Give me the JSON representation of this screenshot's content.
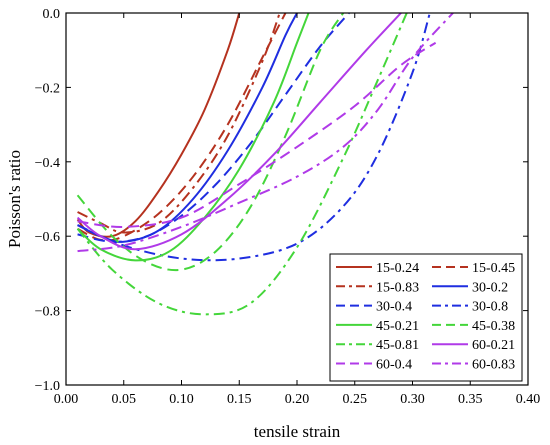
{
  "chart_data": {
    "type": "line",
    "title": "",
    "xlabel": "tensile strain",
    "ylabel": "Poisson's ratio",
    "xlim": [
      0.0,
      0.4
    ],
    "ylim": [
      -1.0,
      0.0
    ],
    "x_ticks": [
      0.0,
      0.05,
      0.1,
      0.15,
      0.2,
      0.25,
      0.3,
      0.35,
      0.4
    ],
    "x_tick_labels": [
      "0.00",
      "0.05",
      "0.10",
      "0.15",
      "0.20",
      "0.25",
      "0.30",
      "0.35",
      "0.40"
    ],
    "y_ticks": [
      0.0,
      -0.2,
      -0.4,
      -0.6,
      -0.8,
      -1.0
    ],
    "y_tick_labels": [
      "0.0",
      "−0.2",
      "−0.4",
      "−0.6",
      "−0.8",
      "−1.0"
    ],
    "grid": false,
    "legend_position": "bottom-right",
    "series": [
      {
        "name": "15-0.24",
        "color": "#b5321f",
        "dash": "solid",
        "x": [
          0.01,
          0.02,
          0.04,
          0.06,
          0.08,
          0.1,
          0.12,
          0.14,
          0.15
        ],
        "y": [
          -0.555,
          -0.59,
          -0.6,
          -0.56,
          -0.48,
          -0.38,
          -0.26,
          -0.1,
          0.0
        ]
      },
      {
        "name": "15-0.45",
        "color": "#b5321f",
        "dash": "dash",
        "x": [
          0.01,
          0.03,
          0.05,
          0.08,
          0.11,
          0.14,
          0.17,
          0.19
        ],
        "y": [
          -0.58,
          -0.61,
          -0.6,
          -0.54,
          -0.44,
          -0.3,
          -0.12,
          0.0
        ]
      },
      {
        "name": "15-0.83",
        "color": "#b5321f",
        "dash": "dashdot",
        "x": [
          0.01,
          0.03,
          0.05,
          0.08,
          0.11,
          0.14,
          0.17,
          0.185
        ],
        "y": [
          -0.535,
          -0.565,
          -0.59,
          -0.565,
          -0.47,
          -0.33,
          -0.13,
          0.0
        ]
      },
      {
        "name": "30-0.2",
        "color": "#1f2ee0",
        "dash": "solid",
        "x": [
          0.01,
          0.03,
          0.05,
          0.08,
          0.11,
          0.14,
          0.17,
          0.19,
          0.2
        ],
        "y": [
          -0.57,
          -0.6,
          -0.615,
          -0.585,
          -0.5,
          -0.37,
          -0.2,
          -0.06,
          0.0
        ]
      },
      {
        "name": "30-0.4",
        "color": "#1f2ee0",
        "dash": "dash",
        "x": [
          0.01,
          0.04,
          0.07,
          0.1,
          0.13,
          0.16,
          0.19,
          0.22,
          0.245
        ],
        "y": [
          -0.595,
          -0.615,
          -0.6,
          -0.545,
          -0.46,
          -0.35,
          -0.22,
          -0.09,
          0.0
        ]
      },
      {
        "name": "30-0.8",
        "color": "#1f2ee0",
        "dash": "dashdot",
        "x": [
          0.01,
          0.05,
          0.1,
          0.15,
          0.2,
          0.24,
          0.27,
          0.3,
          0.315
        ],
        "y": [
          -0.57,
          -0.625,
          -0.66,
          -0.66,
          -0.62,
          -0.52,
          -0.38,
          -0.16,
          0.0
        ]
      },
      {
        "name": "45-0.21",
        "color": "#44d63a",
        "dash": "solid",
        "x": [
          0.01,
          0.03,
          0.06,
          0.09,
          0.12,
          0.15,
          0.18,
          0.2,
          0.21
        ],
        "y": [
          -0.58,
          -0.635,
          -0.665,
          -0.64,
          -0.55,
          -0.42,
          -0.24,
          -0.08,
          0.0
        ]
      },
      {
        "name": "45-0.38",
        "color": "#44d63a",
        "dash": "dash",
        "x": [
          0.01,
          0.04,
          0.07,
          0.1,
          0.13,
          0.16,
          0.19,
          0.22,
          0.24
        ],
        "y": [
          -0.49,
          -0.6,
          -0.67,
          -0.69,
          -0.64,
          -0.52,
          -0.33,
          -0.1,
          0.0
        ]
      },
      {
        "name": "45-0.81",
        "color": "#44d63a",
        "dash": "dashdot",
        "x": [
          0.01,
          0.04,
          0.08,
          0.12,
          0.16,
          0.2,
          0.24,
          0.27,
          0.295
        ],
        "y": [
          -0.58,
          -0.69,
          -0.78,
          -0.81,
          -0.78,
          -0.63,
          -0.39,
          -0.18,
          0.0
        ]
      },
      {
        "name": "60-0.21",
        "color": "#b03ae8",
        "dash": "solid",
        "x": [
          0.01,
          0.03,
          0.06,
          0.1,
          0.14,
          0.18,
          0.22,
          0.26,
          0.29
        ],
        "y": [
          -0.55,
          -0.6,
          -0.635,
          -0.595,
          -0.5,
          -0.38,
          -0.24,
          -0.1,
          0.0
        ]
      },
      {
        "name": "60-0.4",
        "color": "#b03ae8",
        "dash": "dash",
        "x": [
          0.01,
          0.05,
          0.1,
          0.15,
          0.2,
          0.25,
          0.29,
          0.32
        ],
        "y": [
          -0.56,
          -0.575,
          -0.55,
          -0.46,
          -0.36,
          -0.25,
          -0.14,
          -0.08
        ]
      },
      {
        "name": "60-0.83",
        "color": "#b03ae8",
        "dash": "dashdot",
        "x": [
          0.01,
          0.05,
          0.1,
          0.15,
          0.2,
          0.24,
          0.27,
          0.3,
          0.335
        ],
        "y": [
          -0.64,
          -0.625,
          -0.575,
          -0.51,
          -0.44,
          -0.36,
          -0.26,
          -0.12,
          0.0
        ]
      }
    ]
  }
}
